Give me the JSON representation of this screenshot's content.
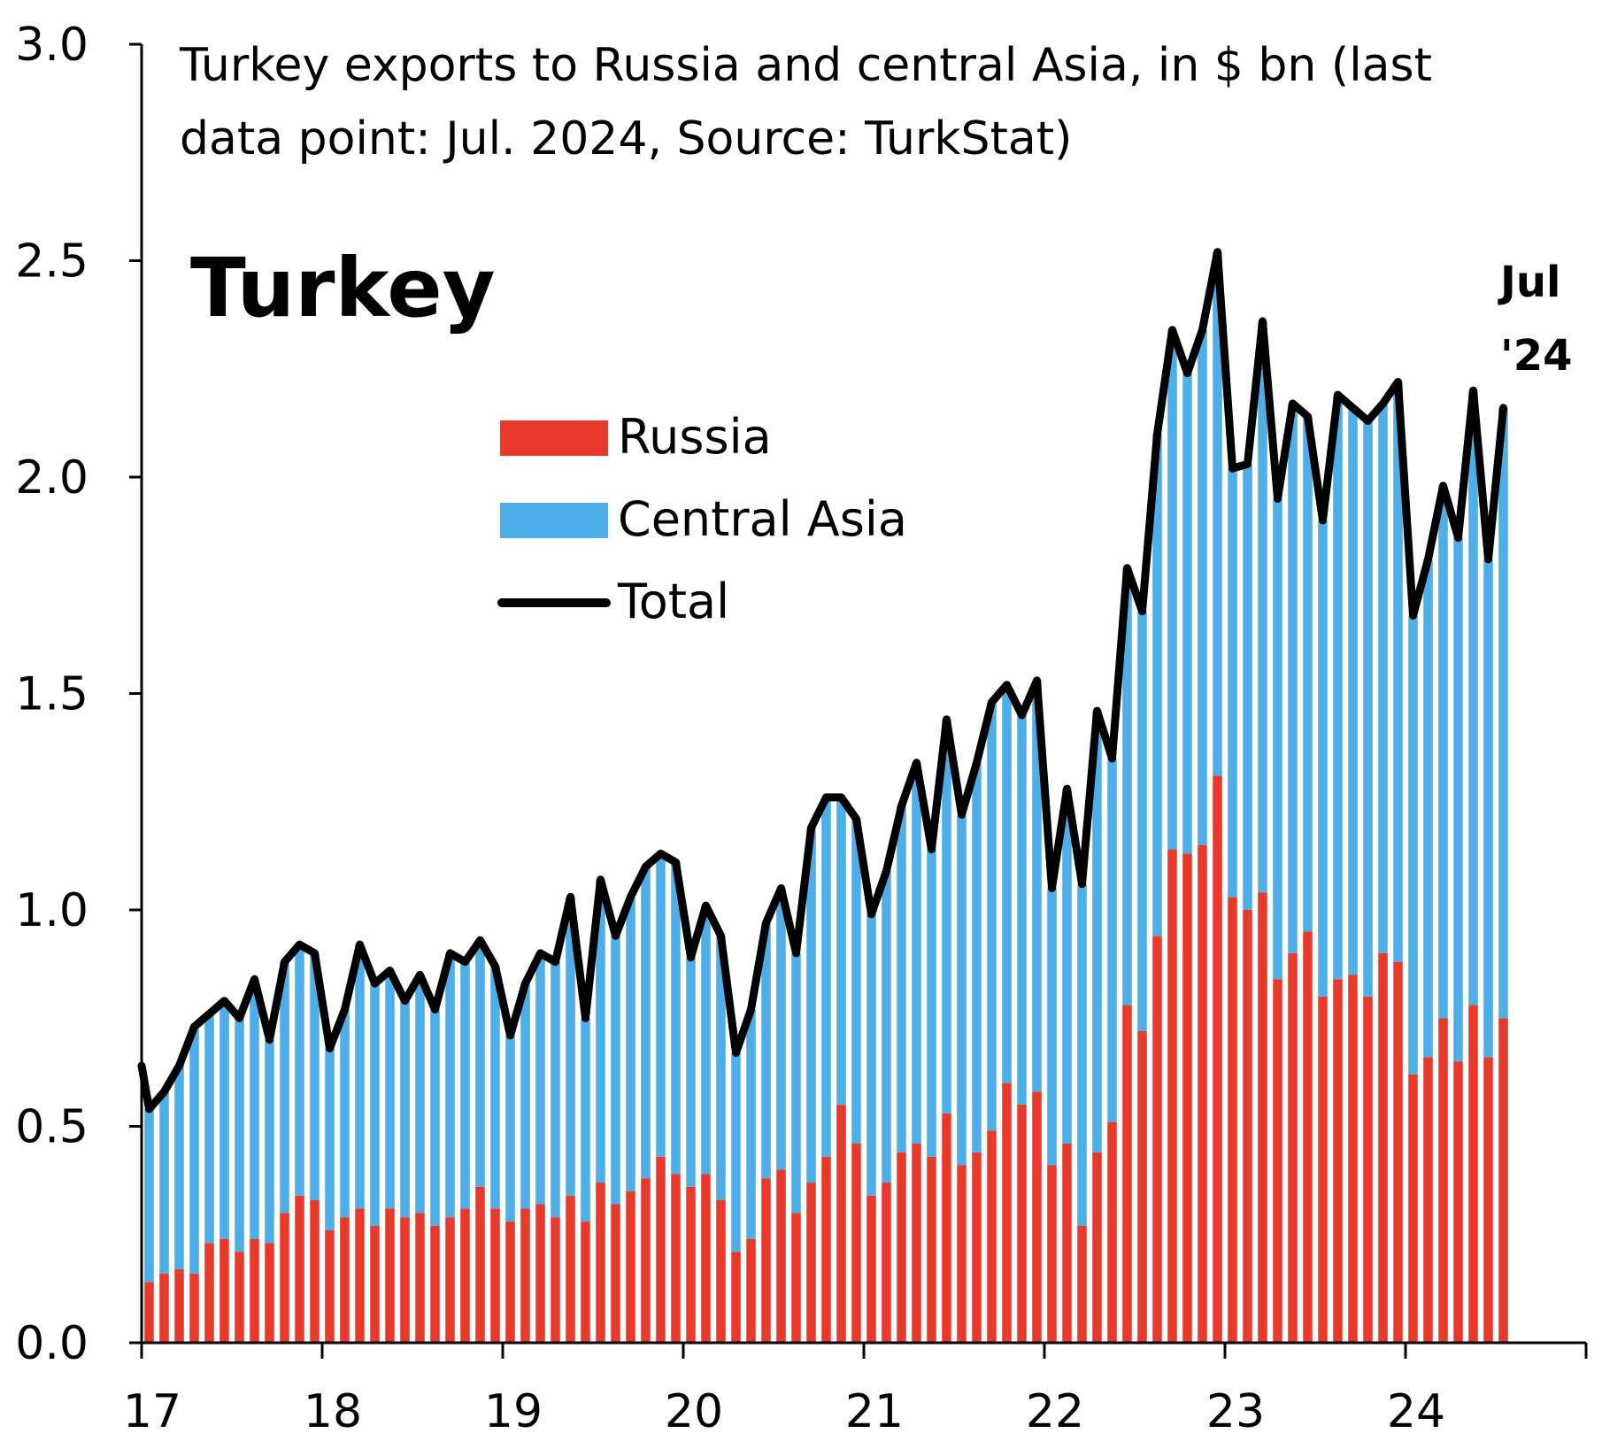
{
  "chart_data": {
    "type": "bar",
    "subtitle": "Turkey exports to Russia and central Asia, in $ bn (last data point: Jul. 2024, Source: TurkStat)",
    "subtitle_lines": [
      "Turkey exports to Russia and central Asia, in $ bn (last",
      "data point: Jul. 2024, Source: TurkStat)"
    ],
    "title": "Turkey",
    "end_label": [
      "Jul",
      "'24"
    ],
    "x_tick_labels": [
      "17",
      "18",
      "19",
      "20",
      "21",
      "22",
      "23",
      "24"
    ],
    "y_tick_labels": [
      "0.0",
      "0.5",
      "1.0",
      "1.5",
      "2.0",
      "2.5",
      "3.0"
    ],
    "ylim": [
      0,
      3.0
    ],
    "xlim_years": [
      2017,
      2025
    ],
    "legend": {
      "russia": "Russia",
      "central_asia": "Central Asia",
      "total": "Total"
    },
    "colors": {
      "russia": "#e8392b",
      "central_asia": "#4daee8",
      "total": "#000000",
      "axis": "#000000"
    },
    "start": "2017-01",
    "series": [
      {
        "name": "Russia",
        "stack": true,
        "values": [
          0.14,
          0.16,
          0.17,
          0.16,
          0.23,
          0.24,
          0.21,
          0.24,
          0.23,
          0.3,
          0.34,
          0.33,
          0.26,
          0.29,
          0.31,
          0.27,
          0.31,
          0.29,
          0.3,
          0.27,
          0.29,
          0.31,
          0.36,
          0.31,
          0.28,
          0.31,
          0.32,
          0.29,
          0.34,
          0.28,
          0.37,
          0.32,
          0.35,
          0.38,
          0.43,
          0.39,
          0.36,
          0.39,
          0.33,
          0.21,
          0.24,
          0.38,
          0.4,
          0.3,
          0.37,
          0.43,
          0.55,
          0.46,
          0.34,
          0.37,
          0.44,
          0.46,
          0.43,
          0.53,
          0.41,
          0.44,
          0.49,
          0.6,
          0.55,
          0.58,
          0.41,
          0.46,
          0.27,
          0.44,
          0.51,
          0.78,
          0.72,
          0.94,
          1.14,
          1.13,
          1.15,
          1.31,
          1.03,
          1.0,
          1.04,
          0.84,
          0.9,
          0.95,
          0.8,
          0.84,
          0.85,
          0.8,
          0.9,
          0.88,
          0.62,
          0.66,
          0.75,
          0.65,
          0.78,
          0.66,
          0.75
        ]
      },
      {
        "name": "Central Asia",
        "stack": true,
        "values": [
          0.4,
          0.42,
          0.47,
          0.57,
          0.53,
          0.55,
          0.54,
          0.6,
          0.47,
          0.58,
          0.58,
          0.57,
          0.42,
          0.48,
          0.61,
          0.56,
          0.55,
          0.5,
          0.55,
          0.5,
          0.61,
          0.57,
          0.57,
          0.56,
          0.43,
          0.52,
          0.58,
          0.59,
          0.69,
          0.47,
          0.7,
          0.62,
          0.68,
          0.72,
          0.7,
          0.72,
          0.53,
          0.62,
          0.61,
          0.46,
          0.53,
          0.59,
          0.65,
          0.6,
          0.82,
          0.83,
          0.71,
          0.75,
          0.65,
          0.72,
          0.8,
          0.88,
          0.71,
          0.91,
          0.81,
          0.9,
          0.99,
          0.92,
          0.9,
          0.95,
          0.64,
          0.82,
          0.79,
          1.02,
          0.84,
          1.01,
          0.97,
          1.16,
          1.2,
          1.11,
          1.19,
          1.21,
          0.99,
          1.03,
          1.32,
          1.11,
          1.27,
          1.19,
          1.1,
          1.35,
          1.31,
          1.33,
          1.27,
          1.34,
          1.06,
          1.15,
          1.23,
          1.21,
          1.42,
          1.15,
          1.41
        ]
      },
      {
        "name": "Total",
        "type": "line",
        "values": [
          0.54,
          0.58,
          0.64,
          0.73,
          0.76,
          0.79,
          0.75,
          0.84,
          0.7,
          0.88,
          0.92,
          0.9,
          0.68,
          0.77,
          0.92,
          0.83,
          0.86,
          0.79,
          0.85,
          0.77,
          0.9,
          0.88,
          0.93,
          0.87,
          0.71,
          0.83,
          0.9,
          0.88,
          1.03,
          0.75,
          1.07,
          0.94,
          1.03,
          1.1,
          1.13,
          1.11,
          0.89,
          1.01,
          0.94,
          0.67,
          0.77,
          0.97,
          1.05,
          0.9,
          1.19,
          1.26,
          1.26,
          1.21,
          0.99,
          1.09,
          1.24,
          1.34,
          1.14,
          1.44,
          1.22,
          1.34,
          1.48,
          1.52,
          1.45,
          1.53,
          1.05,
          1.28,
          1.06,
          1.46,
          1.35,
          1.79,
          1.69,
          2.1,
          2.34,
          2.24,
          2.34,
          2.52,
          2.02,
          2.03,
          2.36,
          1.95,
          2.17,
          2.14,
          1.9,
          2.19,
          2.16,
          2.13,
          2.17,
          2.22,
          1.68,
          1.81,
          1.98,
          1.86,
          2.2,
          1.81,
          2.16
        ]
      }
    ]
  }
}
